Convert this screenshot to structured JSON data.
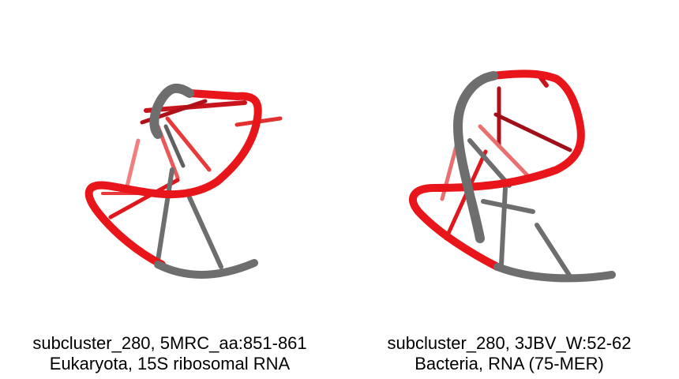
{
  "panels": [
    {
      "line1": "subcluster_280, 5MRC_aa:851-861",
      "line2": "Eukaryota, 15S ribosomal RNA"
    },
    {
      "line1": "subcluster_280, 3JBV_W:52-62",
      "line2": "Bacteria, RNA (75-MER)"
    }
  ],
  "colors": {
    "backbone_red": "#e8161b",
    "backbone_gray": "#6e6e6e",
    "base_red": "#c8141c",
    "background": "#ffffff"
  }
}
